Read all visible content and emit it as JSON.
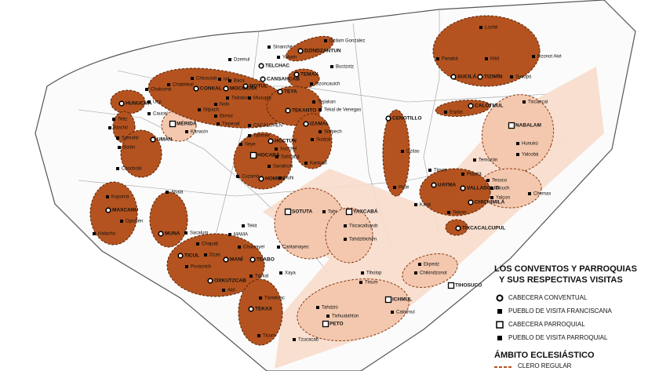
{
  "legend": {
    "title": [
      "LOS CONVENTOS Y PARROQUIAS",
      "Y SUS RESPECTIVAS VISITAS"
    ],
    "items": [
      "CABECERA CONVENTUAL",
      "PUEBLO DE VISITA FRANCISCANA",
      "CABECERA PARROQUIAL",
      "PUEBLO DE VISITA PARROQUIAL"
    ],
    "ambito_title": "ÁMBITO ECLESIÁSTICO",
    "ambito_items": [
      "CLERO REGULAR"
    ]
  },
  "places": [
    "Dzilam Gonzalez",
    "DZINDZANTUN",
    "Buctzotz",
    "Yobain",
    "Sinanché",
    "Dzemul",
    "TEMAX",
    "Dzoncauich",
    "CANSAHCAB",
    "TEYA",
    "MOTUL",
    "Tepakan",
    "TEKANTO",
    "Tekal de Venegas",
    "TELCHAC",
    "CACALCHEN",
    "IZAMAL",
    "Sitilpech",
    "Sudzal",
    "Kantunil",
    "Xocchel",
    "HOCTÚN",
    "Tahmek",
    "Seye",
    "HOCABÁ",
    "Sahcabá",
    "Sanahcat",
    "Huhi",
    "HOMUN",
    "Cuzamá",
    "CONKAL",
    "Chicxulub",
    "MOCOCHA",
    "Ixil",
    "Baca",
    "Chablekal",
    "Chuburná",
    "HUNUCMÁ",
    "Ucú",
    "Caucel",
    "MÉRIDA",
    "Kanasín",
    "Tixpeual",
    "Tetiz",
    "Kinchil",
    "Samahil",
    "UMÁN",
    "Bolón",
    "Chocholá",
    "Abalá",
    "Kopomá",
    "MAXCANÚ",
    "Opichén",
    "Halachó",
    "MUNA",
    "Sacalum",
    "Tekit",
    "MAMA",
    "Chapab",
    "TICUL",
    "Pustunich",
    "Dzan",
    "MANÍ",
    "Chumayel",
    "TEABO",
    "OXKUTZCAB",
    "Akil",
    "Tipikal",
    "Xaya",
    "Tixméuac",
    "TEKAX",
    "Ticum",
    "Tahdziú",
    "Tixhualahtún",
    "PETO",
    "Tzucacab",
    "Chikindzonot",
    "Ekpedz",
    "TIHOSUCO",
    "ICHMUL",
    "Calotmul",
    "Tiholop",
    "Tinum",
    "SOTUTA",
    "Tabi",
    "YAXCABÁ",
    "Tixcacaltuyub",
    "Tahdzibichén",
    "Cantamayec",
    "CENOTILLO",
    "Dzitas",
    "Pisté",
    "Espita",
    "CALOTMUL",
    "TIXCACALCUPUL",
    "VALLADOLID",
    "UAYMA",
    "Tinum",
    "Popolá",
    "Tekom",
    "CHICHIMILÁ",
    "Kaua",
    "Temozón",
    "Tesoco",
    "Ticuch",
    "Yalcon",
    "Chemax",
    "NABALAM",
    "Hunukú",
    "Yalcobá",
    "Tixcancal",
    "Loché",
    "Panabá",
    "Kikil",
    "Dzonot Aké",
    "SUCILÁ",
    "TIZIMÍN",
    "Sucopó",
    "Tixkokob",
    "Nolo",
    "Muxupip",
    "Sitpach",
    "Ekmul"
  ]
}
